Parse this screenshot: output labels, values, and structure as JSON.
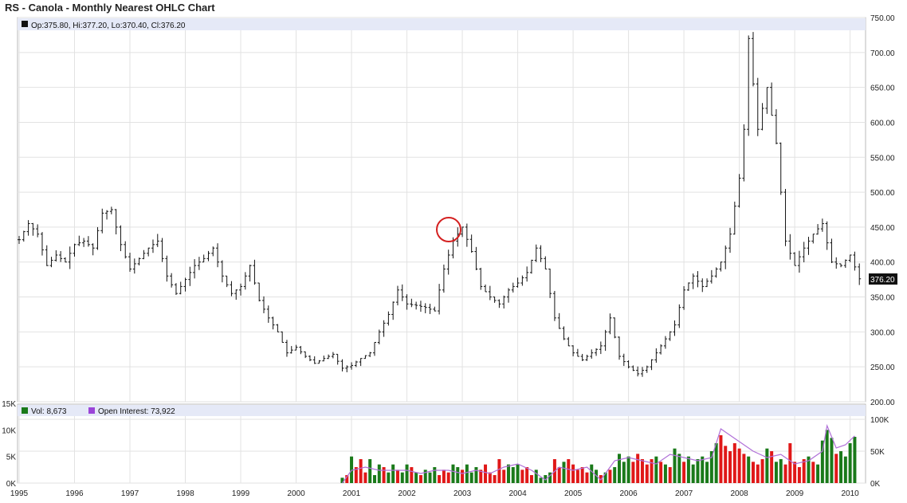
{
  "page": {
    "title": "RS - Canola - Monthly Nearest OHLC Chart"
  },
  "price_legend": "Op:375.80, Hi:377.20, Lo:370.40, Cl:376.20",
  "last_price_label": "376.20",
  "volume_legend": {
    "vol": "Vol: 8,673",
    "oi": "Open Interest: 73,922"
  },
  "colors": {
    "legend_bar": "#e5e9f7",
    "grid": "#e2e2e2",
    "ohlc": "#111111",
    "vol_up": "#1a7a1a",
    "vol_down": "#e01818",
    "open_interest": "#b070d8",
    "highlight_circle": "#d42020",
    "last_price_bg": "#111111"
  },
  "chart_data": [
    {
      "type": "line",
      "subtype": "ohlc",
      "title": "RS - Canola - Monthly Nearest OHLC Chart",
      "x_tick_labels": [
        "1995",
        "1996",
        "1997",
        "1998",
        "1999",
        "2000",
        "2001",
        "2002",
        "2003",
        "2004",
        "2005",
        "2006",
        "2007",
        "2008",
        "2009",
        "2010"
      ],
      "y_tick_labels": [
        "200.00",
        "250.00",
        "300.00",
        "350.00",
        "400.00",
        "450.00",
        "500.00",
        "550.00",
        "600.00",
        "650.00",
        "700.00",
        "750.00"
      ],
      "ylim": [
        200,
        750
      ],
      "grid": true,
      "axis_side": "right",
      "annotation": "circle highlighting late-2002 peak",
      "close_series": [
        [
          "1995-01",
          432
        ],
        [
          "1995-03",
          455
        ],
        [
          "1995-05",
          440
        ],
        [
          "1995-07",
          395
        ],
        [
          "1995-09",
          410
        ],
        [
          "1995-11",
          400
        ],
        [
          "1996-01",
          425
        ],
        [
          "1996-03",
          430
        ],
        [
          "1996-05",
          420
        ],
        [
          "1996-07",
          470
        ],
        [
          "1996-09",
          475
        ],
        [
          "1996-11",
          425
        ],
        [
          "1997-01",
          390
        ],
        [
          "1997-03",
          405
        ],
        [
          "1997-05",
          420
        ],
        [
          "1997-07",
          430
        ],
        [
          "1997-09",
          380
        ],
        [
          "1997-11",
          355
        ],
        [
          "1998-01",
          375
        ],
        [
          "1998-03",
          395
        ],
        [
          "1998-05",
          405
        ],
        [
          "1998-07",
          420
        ],
        [
          "1998-09",
          380
        ],
        [
          "1998-11",
          355
        ],
        [
          "1999-01",
          365
        ],
        [
          "1999-03",
          395
        ],
        [
          "1999-05",
          345
        ],
        [
          "1999-07",
          320
        ],
        [
          "1999-09",
          300
        ],
        [
          "1999-11",
          270
        ],
        [
          "2000-01",
          278
        ],
        [
          "2000-03",
          265
        ],
        [
          "2000-05",
          255
        ],
        [
          "2000-07",
          262
        ],
        [
          "2000-09",
          268
        ],
        [
          "2000-11",
          248
        ],
        [
          "2001-01",
          252
        ],
        [
          "2001-03",
          262
        ],
        [
          "2001-05",
          270
        ],
        [
          "2001-07",
          300
        ],
        [
          "2001-09",
          325
        ],
        [
          "2001-11",
          360
        ],
        [
          "2002-01",
          340
        ],
        [
          "2002-03",
          338
        ],
        [
          "2002-05",
          335
        ],
        [
          "2002-07",
          330
        ],
        [
          "2002-09",
          390
        ],
        [
          "2002-11",
          430
        ],
        [
          "2003-01",
          450
        ],
        [
          "2003-03",
          415
        ],
        [
          "2003-05",
          365
        ],
        [
          "2003-07",
          350
        ],
        [
          "2003-09",
          340
        ],
        [
          "2003-11",
          360
        ],
        [
          "2004-01",
          370
        ],
        [
          "2004-03",
          385
        ],
        [
          "2004-05",
          420
        ],
        [
          "2004-07",
          390
        ],
        [
          "2004-09",
          320
        ],
        [
          "2004-11",
          290
        ],
        [
          "2005-01",
          270
        ],
        [
          "2005-03",
          260
        ],
        [
          "2005-05",
          270
        ],
        [
          "2005-07",
          280
        ],
        [
          "2005-09",
          320
        ],
        [
          "2005-11",
          265
        ],
        [
          "2006-01",
          250
        ],
        [
          "2006-03",
          240
        ],
        [
          "2006-05",
          250
        ],
        [
          "2006-07",
          270
        ],
        [
          "2006-09",
          290
        ],
        [
          "2006-11",
          310
        ],
        [
          "2007-01",
          360
        ],
        [
          "2007-03",
          380
        ],
        [
          "2007-05",
          365
        ],
        [
          "2007-07",
          380
        ],
        [
          "2007-09",
          400
        ],
        [
          "2007-11",
          440
        ],
        [
          "2008-01",
          520
        ],
        [
          "2008-02",
          590
        ],
        [
          "2008-03",
          720
        ],
        [
          "2008-05",
          590
        ],
        [
          "2008-07",
          650
        ],
        [
          "2008-09",
          570
        ],
        [
          "2008-11",
          430
        ],
        [
          "2009-01",
          395
        ],
        [
          "2009-03",
          420
        ],
        [
          "2009-05",
          440
        ],
        [
          "2009-07",
          455
        ],
        [
          "2009-09",
          400
        ],
        [
          "2009-11",
          395
        ],
        [
          "2010-01",
          410
        ],
        [
          "2010-03",
          376
        ]
      ]
    },
    {
      "type": "bar",
      "title": "",
      "y_tick_labels_left": [
        "0K",
        "5K",
        "10K",
        "15K"
      ],
      "y_tick_labels_right": [
        "0K",
        "50K",
        "100K"
      ],
      "series": [
        {
          "name": "Vol",
          "last": "8,673"
        },
        {
          "name": "Open Interest",
          "last": "73,922"
        }
      ],
      "volume_k": [
        [
          "2000-11",
          1.0
        ],
        [
          "2000-12",
          1.5
        ],
        [
          "2001-01",
          5.0
        ],
        [
          "2001-02",
          3.0
        ],
        [
          "2001-03",
          4.5
        ],
        [
          "2001-04",
          2.0
        ],
        [
          "2001-05",
          4.5
        ],
        [
          "2001-06",
          1.5
        ],
        [
          "2001-07",
          3.5
        ],
        [
          "2001-08",
          3.0
        ],
        [
          "2001-09",
          2.0
        ],
        [
          "2001-10",
          3.5
        ],
        [
          "2001-11",
          2.5
        ],
        [
          "2001-12",
          2.0
        ],
        [
          "2002-01",
          3.5
        ],
        [
          "2002-02",
          3.0
        ],
        [
          "2002-03",
          2.0
        ],
        [
          "2002-04",
          1.5
        ],
        [
          "2002-05",
          2.5
        ],
        [
          "2002-06",
          2.0
        ],
        [
          "2002-07",
          3.0
        ],
        [
          "2002-08",
          1.5
        ],
        [
          "2002-09",
          2.5
        ],
        [
          "2002-10",
          2.0
        ],
        [
          "2002-11",
          3.5
        ],
        [
          "2002-12",
          3.0
        ],
        [
          "2003-01",
          2.5
        ],
        [
          "2003-02",
          3.5
        ],
        [
          "2003-03",
          2.0
        ],
        [
          "2003-04",
          3.0
        ],
        [
          "2003-05",
          2.5
        ],
        [
          "2003-06",
          3.5
        ],
        [
          "2003-07",
          2.0
        ],
        [
          "2003-08",
          1.5
        ],
        [
          "2003-09",
          4.5
        ],
        [
          "2003-10",
          2.5
        ],
        [
          "2003-11",
          3.5
        ],
        [
          "2003-12",
          3.0
        ],
        [
          "2004-01",
          3.5
        ],
        [
          "2004-02",
          2.5
        ],
        [
          "2004-03",
          3.0
        ],
        [
          "2004-04",
          1.5
        ],
        [
          "2004-05",
          2.5
        ],
        [
          "2004-06",
          1.0
        ],
        [
          "2004-07",
          1.5
        ],
        [
          "2004-08",
          2.0
        ],
        [
          "2004-09",
          4.5
        ],
        [
          "2004-10",
          3.0
        ],
        [
          "2004-11",
          4.0
        ],
        [
          "2004-12",
          4.5
        ],
        [
          "2005-01",
          3.5
        ],
        [
          "2005-02",
          2.5
        ],
        [
          "2005-03",
          3.0
        ],
        [
          "2005-04",
          2.0
        ],
        [
          "2005-05",
          3.5
        ],
        [
          "2005-06",
          2.5
        ],
        [
          "2005-07",
          1.5
        ],
        [
          "2005-08",
          2.0
        ],
        [
          "2005-09",
          2.5
        ],
        [
          "2005-10",
          3.0
        ],
        [
          "2005-11",
          5.5
        ],
        [
          "2005-12",
          4.0
        ],
        [
          "2006-01",
          5.0
        ],
        [
          "2006-02",
          4.0
        ],
        [
          "2006-03",
          5.5
        ],
        [
          "2006-04",
          4.5
        ],
        [
          "2006-05",
          3.5
        ],
        [
          "2006-06",
          4.5
        ],
        [
          "2006-07",
          5.0
        ],
        [
          "2006-08",
          4.0
        ],
        [
          "2006-09",
          3.5
        ],
        [
          "2006-10",
          3.0
        ],
        [
          "2006-11",
          6.5
        ],
        [
          "2006-12",
          5.5
        ],
        [
          "2007-01",
          4.0
        ],
        [
          "2007-02",
          5.0
        ],
        [
          "2007-03",
          3.5
        ],
        [
          "2007-04",
          4.5
        ],
        [
          "2007-05",
          5.0
        ],
        [
          "2007-06",
          4.0
        ],
        [
          "2007-07",
          6.0
        ],
        [
          "2007-08",
          7.5
        ],
        [
          "2007-09",
          9.0
        ],
        [
          "2007-10",
          7.0
        ],
        [
          "2007-11",
          6.0
        ],
        [
          "2007-12",
          7.5
        ],
        [
          "2008-01",
          6.5
        ],
        [
          "2008-02",
          5.5
        ],
        [
          "2008-03",
          5.0
        ],
        [
          "2008-04",
          4.0
        ],
        [
          "2008-05",
          3.5
        ],
        [
          "2008-06",
          4.5
        ],
        [
          "2008-07",
          6.5
        ],
        [
          "2008-08",
          6.0
        ],
        [
          "2008-09",
          4.0
        ],
        [
          "2008-10",
          4.5
        ],
        [
          "2008-11",
          3.5
        ],
        [
          "2008-12",
          7.5
        ],
        [
          "2009-01",
          4.0
        ],
        [
          "2009-02",
          3.0
        ],
        [
          "2009-03",
          4.5
        ],
        [
          "2009-04",
          5.0
        ],
        [
          "2009-05",
          4.0
        ],
        [
          "2009-06",
          3.5
        ],
        [
          "2009-07",
          8.0
        ],
        [
          "2009-08",
          10.0
        ],
        [
          "2009-09",
          8.5
        ],
        [
          "2009-10",
          5.5
        ],
        [
          "2009-11",
          6.0
        ],
        [
          "2009-12",
          5.0
        ],
        [
          "2010-01",
          7.5
        ],
        [
          "2010-02",
          8.7
        ]
      ],
      "open_interest_k": [
        [
          "2000-11",
          0
        ],
        [
          "2001-01",
          20
        ],
        [
          "2001-04",
          25
        ],
        [
          "2001-07",
          20
        ],
        [
          "2001-10",
          20
        ],
        [
          "2002-01",
          20
        ],
        [
          "2002-04",
          15
        ],
        [
          "2002-07",
          20
        ],
        [
          "2002-10",
          20
        ],
        [
          "2003-01",
          15
        ],
        [
          "2003-04",
          20
        ],
        [
          "2003-07",
          15
        ],
        [
          "2003-10",
          25
        ],
        [
          "2004-01",
          30
        ],
        [
          "2004-04",
          20
        ],
        [
          "2004-07",
          5
        ],
        [
          "2004-10",
          25
        ],
        [
          "2005-01",
          20
        ],
        [
          "2005-04",
          25
        ],
        [
          "2005-07",
          5
        ],
        [
          "2005-10",
          35
        ],
        [
          "2006-01",
          40
        ],
        [
          "2006-04",
          35
        ],
        [
          "2006-07",
          30
        ],
        [
          "2006-10",
          45
        ],
        [
          "2007-01",
          40
        ],
        [
          "2007-04",
          35
        ],
        [
          "2007-07",
          40
        ],
        [
          "2007-09",
          85
        ],
        [
          "2007-10",
          80
        ],
        [
          "2008-01",
          65
        ],
        [
          "2008-04",
          50
        ],
        [
          "2008-07",
          40
        ],
        [
          "2008-10",
          45
        ],
        [
          "2009-01",
          30
        ],
        [
          "2009-04",
          35
        ],
        [
          "2009-07",
          50
        ],
        [
          "2009-08",
          90
        ],
        [
          "2009-10",
          55
        ],
        [
          "2009-12",
          60
        ],
        [
          "2010-02",
          74
        ]
      ]
    }
  ]
}
